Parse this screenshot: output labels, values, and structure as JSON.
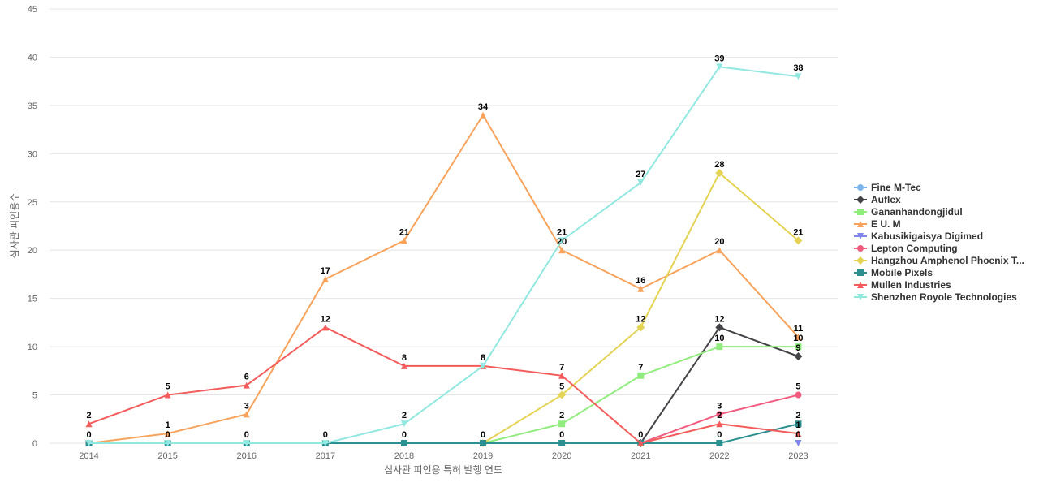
{
  "chart_data": {
    "type": "line",
    "title": "",
    "xlabel": "심사관 피인용 특허 발행 연도",
    "ylabel": "심사관 피인용수",
    "ylim": [
      0,
      45
    ],
    "yticks": [
      0,
      5,
      10,
      15,
      20,
      25,
      30,
      35,
      40,
      45
    ],
    "grid": true,
    "legend_position": "right",
    "categories": [
      "2014",
      "2015",
      "2016",
      "2017",
      "2018",
      "2019",
      "2020",
      "2021",
      "2022",
      "2023"
    ],
    "series": [
      {
        "name": "Fine M-Tec",
        "color": "#7cb5ec",
        "marker": "circle",
        "values": [
          null,
          null,
          null,
          null,
          null,
          null,
          null,
          null,
          null,
          null
        ]
      },
      {
        "name": "Auflex",
        "color": "#434348",
        "marker": "diamond",
        "values": [
          null,
          null,
          null,
          null,
          null,
          null,
          null,
          0,
          12,
          9
        ]
      },
      {
        "name": "Gananhandongjidul",
        "color": "#90ed7d",
        "marker": "square",
        "values": [
          null,
          null,
          null,
          null,
          null,
          0,
          2,
          7,
          10,
          10
        ]
      },
      {
        "name": "E U. M",
        "color": "#f7a35c",
        "marker": "triangle",
        "values": [
          0,
          1,
          3,
          17,
          21,
          34,
          20,
          16,
          20,
          11
        ]
      },
      {
        "name": "Kabusikigaisya Digimed",
        "color": "#8085e9",
        "marker": "triangle-down",
        "values": [
          null,
          null,
          null,
          null,
          null,
          null,
          null,
          null,
          null,
          0
        ]
      },
      {
        "name": "Lepton Computing",
        "color": "#f15c80",
        "marker": "circle",
        "values": [
          null,
          null,
          null,
          null,
          null,
          null,
          null,
          0,
          3,
          5
        ]
      },
      {
        "name": "Hangzhou Amphenol Phoenix T...",
        "color": "#e4d354",
        "marker": "diamond",
        "values": [
          null,
          null,
          null,
          null,
          null,
          0,
          5,
          12,
          28,
          21
        ]
      },
      {
        "name": "Mobile Pixels",
        "color": "#2b908f",
        "marker": "square",
        "values": [
          0,
          0,
          0,
          0,
          0,
          0,
          0,
          0,
          0,
          2
        ]
      },
      {
        "name": "Mullen Industries",
        "color": "#f45b5b",
        "marker": "triangle",
        "values": [
          2,
          5,
          6,
          12,
          8,
          8,
          7,
          0,
          2,
          1
        ]
      },
      {
        "name": "Shenzhen Royole Technologies",
        "color": "#91e8e1",
        "marker": "triangle-down",
        "values": [
          0,
          0,
          0,
          0,
          2,
          8,
          21,
          27,
          39,
          38
        ]
      }
    ],
    "data_labels": [
      {
        "x": "2014",
        "text": "2",
        "value": 2
      },
      {
        "x": "2014",
        "text": "0",
        "value": 0
      },
      {
        "x": "2015",
        "text": "5",
        "value": 5
      },
      {
        "x": "2015",
        "text": "1",
        "value": 1
      },
      {
        "x": "2015",
        "text": "0",
        "value": 0
      },
      {
        "x": "2016",
        "text": "6",
        "value": 6
      },
      {
        "x": "2016",
        "text": "3",
        "value": 3
      },
      {
        "x": "2016",
        "text": "0",
        "value": 0
      },
      {
        "x": "2017",
        "text": "17",
        "value": 17
      },
      {
        "x": "2017",
        "text": "12",
        "value": 12
      },
      {
        "x": "2017",
        "text": "0",
        "value": 0
      },
      {
        "x": "2018",
        "text": "21",
        "value": 21
      },
      {
        "x": "2018",
        "text": "8",
        "value": 8
      },
      {
        "x": "2018",
        "text": "2",
        "value": 2
      },
      {
        "x": "2018",
        "text": "0",
        "value": 0
      },
      {
        "x": "2019",
        "text": "34",
        "value": 34
      },
      {
        "x": "2019",
        "text": "8",
        "value": 8
      },
      {
        "x": "2019",
        "text": "0",
        "value": 0
      },
      {
        "x": "2020",
        "text": "21",
        "value": 21
      },
      {
        "x": "2020",
        "text": "20",
        "value": 20
      },
      {
        "x": "2020",
        "text": "7",
        "value": 7
      },
      {
        "x": "2020",
        "text": "5",
        "value": 5
      },
      {
        "x": "2020",
        "text": "2",
        "value": 2
      },
      {
        "x": "2020",
        "text": "0",
        "value": 0
      },
      {
        "x": "2021",
        "text": "27",
        "value": 27
      },
      {
        "x": "2021",
        "text": "16",
        "value": 16
      },
      {
        "x": "2021",
        "text": "12",
        "value": 12
      },
      {
        "x": "2021",
        "text": "7",
        "value": 7
      },
      {
        "x": "2021",
        "text": "0",
        "value": 0
      },
      {
        "x": "2022",
        "text": "39",
        "value": 39
      },
      {
        "x": "2022",
        "text": "28",
        "value": 28
      },
      {
        "x": "2022",
        "text": "20",
        "value": 20
      },
      {
        "x": "2022",
        "text": "12",
        "value": 12
      },
      {
        "x": "2022",
        "text": "10",
        "value": 10
      },
      {
        "x": "2022",
        "text": "3",
        "value": 3
      },
      {
        "x": "2022",
        "text": "2",
        "value": 2
      },
      {
        "x": "2022",
        "text": "0",
        "value": 0
      },
      {
        "x": "2023",
        "text": "38",
        "value": 38
      },
      {
        "x": "2023",
        "text": "21",
        "value": 21
      },
      {
        "x": "2023",
        "text": "11",
        "value": 11
      },
      {
        "x": "2023",
        "text": "10",
        "value": 10
      },
      {
        "x": "2023",
        "text": "9",
        "value": 9
      },
      {
        "x": "2023",
        "text": "5",
        "value": 5
      },
      {
        "x": "2023",
        "text": "2",
        "value": 2
      },
      {
        "x": "2023",
        "text": "1",
        "value": 1
      },
      {
        "x": "2023",
        "text": "0",
        "value": 0
      }
    ]
  }
}
